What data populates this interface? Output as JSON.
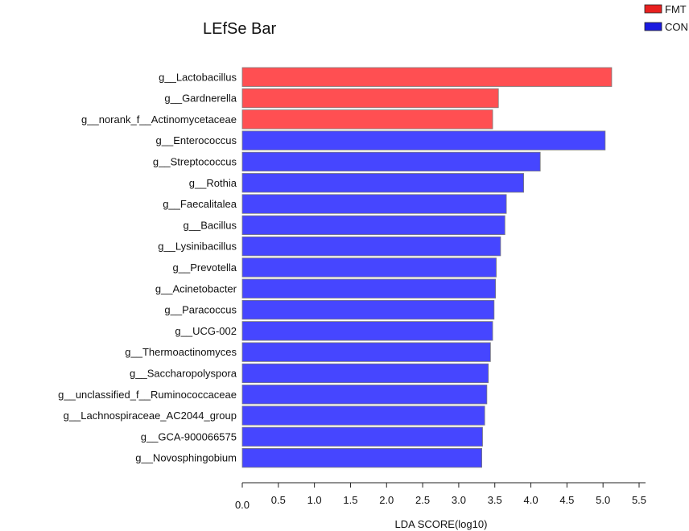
{
  "chart_data": {
    "type": "bar",
    "orientation": "horizontal",
    "title": "LEfSe Bar",
    "xlabel": "LDA SCORE(log10)",
    "ylabel": "",
    "xlim": [
      0,
      5.5
    ],
    "x_ticks": [
      "0.0",
      "0.5",
      "1.0",
      "1.5",
      "2.0",
      "2.5",
      "3.0",
      "3.5",
      "4.0",
      "4.5",
      "5.0",
      "5.5"
    ],
    "grid": false,
    "legend_position": "top-right",
    "legend": [
      {
        "name": "FMT",
        "color": "#e8201f"
      },
      {
        "name": "CON",
        "color": "#1a1ae0"
      }
    ],
    "group_colors": {
      "FMT": "#ff4f52",
      "CON": "#4646ff"
    },
    "categories": [
      "g__Lactobacillus",
      "g__Gardnerella",
      "g__norank_f__Actinomycetaceae",
      "g__Enterococcus",
      "g__Streptococcus",
      "g__Rothia",
      "g__Faecalitalea",
      "g__Bacillus",
      "g__Lysinibacillus",
      "g__Prevotella",
      "g__Acinetobacter",
      "g__Paracoccus",
      "g__UCG-002",
      "g__Thermoactinomyces",
      "g__Saccharopolyspora",
      "g__unclassified_f__Ruminococcaceae",
      "g__Lachnospiraceae_AC2044_group",
      "g__GCA-900066575",
      "g__Novosphingobium"
    ],
    "values": [
      5.12,
      3.55,
      3.47,
      5.03,
      4.13,
      3.9,
      3.66,
      3.64,
      3.58,
      3.52,
      3.51,
      3.49,
      3.47,
      3.44,
      3.41,
      3.39,
      3.36,
      3.33,
      3.32
    ],
    "groups": [
      "FMT",
      "FMT",
      "FMT",
      "CON",
      "CON",
      "CON",
      "CON",
      "CON",
      "CON",
      "CON",
      "CON",
      "CON",
      "CON",
      "CON",
      "CON",
      "CON",
      "CON",
      "CON",
      "CON"
    ]
  }
}
